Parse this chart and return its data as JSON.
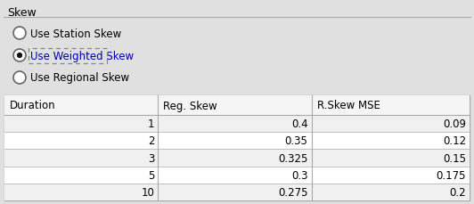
{
  "title": "Skew",
  "radio_options": [
    "Use Station Skew",
    "Use Weighted Skew",
    "Use Regional Skew"
  ],
  "selected_radio": 1,
  "selected_text_color": "#0000aa",
  "table_headers": [
    "Duration",
    "Reg. Skew",
    "R.Skew MSE"
  ],
  "table_rows": [
    [
      "1",
      "0.4",
      "0.09"
    ],
    [
      "2",
      "0.35",
      "0.12"
    ],
    [
      "3",
      "0.325",
      "0.15"
    ],
    [
      "5",
      "0.3",
      "0.175"
    ],
    [
      "10",
      "0.275",
      "0.2"
    ]
  ],
  "bg_color": "#e0e0e0",
  "table_bg_color": "#ffffff",
  "table_header_bg": "#f5f5f5",
  "border_color": "#aaaaaa",
  "text_color": "#000000",
  "font_size": 8.5,
  "title_font_size": 9,
  "radio_font_size": 8.5,
  "figwidth": 5.32,
  "figheight": 2.3,
  "dpi": 100
}
